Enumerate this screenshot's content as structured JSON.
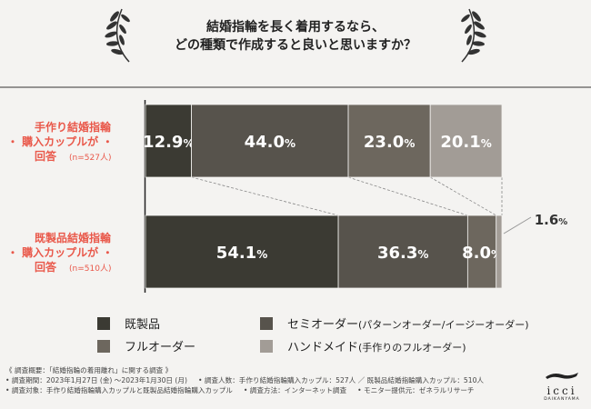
{
  "title": {
    "line1": "結婚指輪を長く着用するなら、",
    "line2": "どの種類で作成すると良いと思いますか？"
  },
  "chart_data": {
    "type": "bar",
    "orientation": "horizontal-stacked-100",
    "categories": [
      "手作り結婚指輪・購入カップルが・回答",
      "既製品結婚指輪・購入カップルが・回答"
    ],
    "series": [
      {
        "name": "既製品",
        "values": [
          12.9,
          54.1
        ],
        "color": "#3b3a33"
      },
      {
        "name": "セミオーダー(パターンオーダー/イージーオーダー)",
        "values": [
          44.0,
          36.3
        ],
        "color": "#57534c"
      },
      {
        "name": "フルオーダー",
        "values": [
          23.0,
          8.0
        ],
        "color": "#6d675e"
      },
      {
        "name": "ハンドメイド(手作りのフルオーダー)",
        "values": [
          20.1,
          1.6
        ],
        "color": "#a29c96"
      }
    ],
    "value_labels": [
      [
        "12.9%",
        "44.0%",
        "23.0%",
        "20.1%"
      ],
      [
        "54.1%",
        "36.3%",
        "8.0%",
        "1.6%"
      ]
    ],
    "xlim": [
      0,
      100
    ]
  },
  "rows": [
    {
      "line1": "手作り結婚指輪",
      "line2": "・ 購入カップルが ・",
      "line3": "回答",
      "n": "(n=527人)"
    },
    {
      "line1": "既製品結婚指輪",
      "line2": "・ 購入カップルが ・",
      "line3": "回答",
      "n": "(n=510人)"
    }
  ],
  "legend": [
    {
      "label": "既製品",
      "sub": "",
      "color": "#3b3a33"
    },
    {
      "label": "セミオーダー",
      "sub": "(パターンオーダー/イージーオーダー)",
      "color": "#57534c"
    },
    {
      "label": "フルオーダー",
      "sub": "",
      "color": "#6d675e"
    },
    {
      "label": "ハンドメイド",
      "sub": "(手作りのフルオーダー)",
      "color": "#a29c96"
    }
  ],
  "footer": {
    "line1": "《 調査概要：「結婚指輪の着用離れ」に関する調査 》",
    "line2a": "• 調査期間：2023年1月27日 (金) 〜2023年1月30日 (月)",
    "line2b": "• 調査人数：手作り結婚指輪購入カップル：527人 ／ 既製品結婚指輪購入カップル：510人",
    "line3a": "• 調査対象：手作り結婚指輪購入カップルと既製品結婚指輪購入カップル",
    "line3b": "• 調査方法：インターネット調査",
    "line3c": "• モニター提供元：ゼネラルリサーチ"
  },
  "logo": {
    "word": "icci",
    "sub": "DAIKANYAMA"
  }
}
